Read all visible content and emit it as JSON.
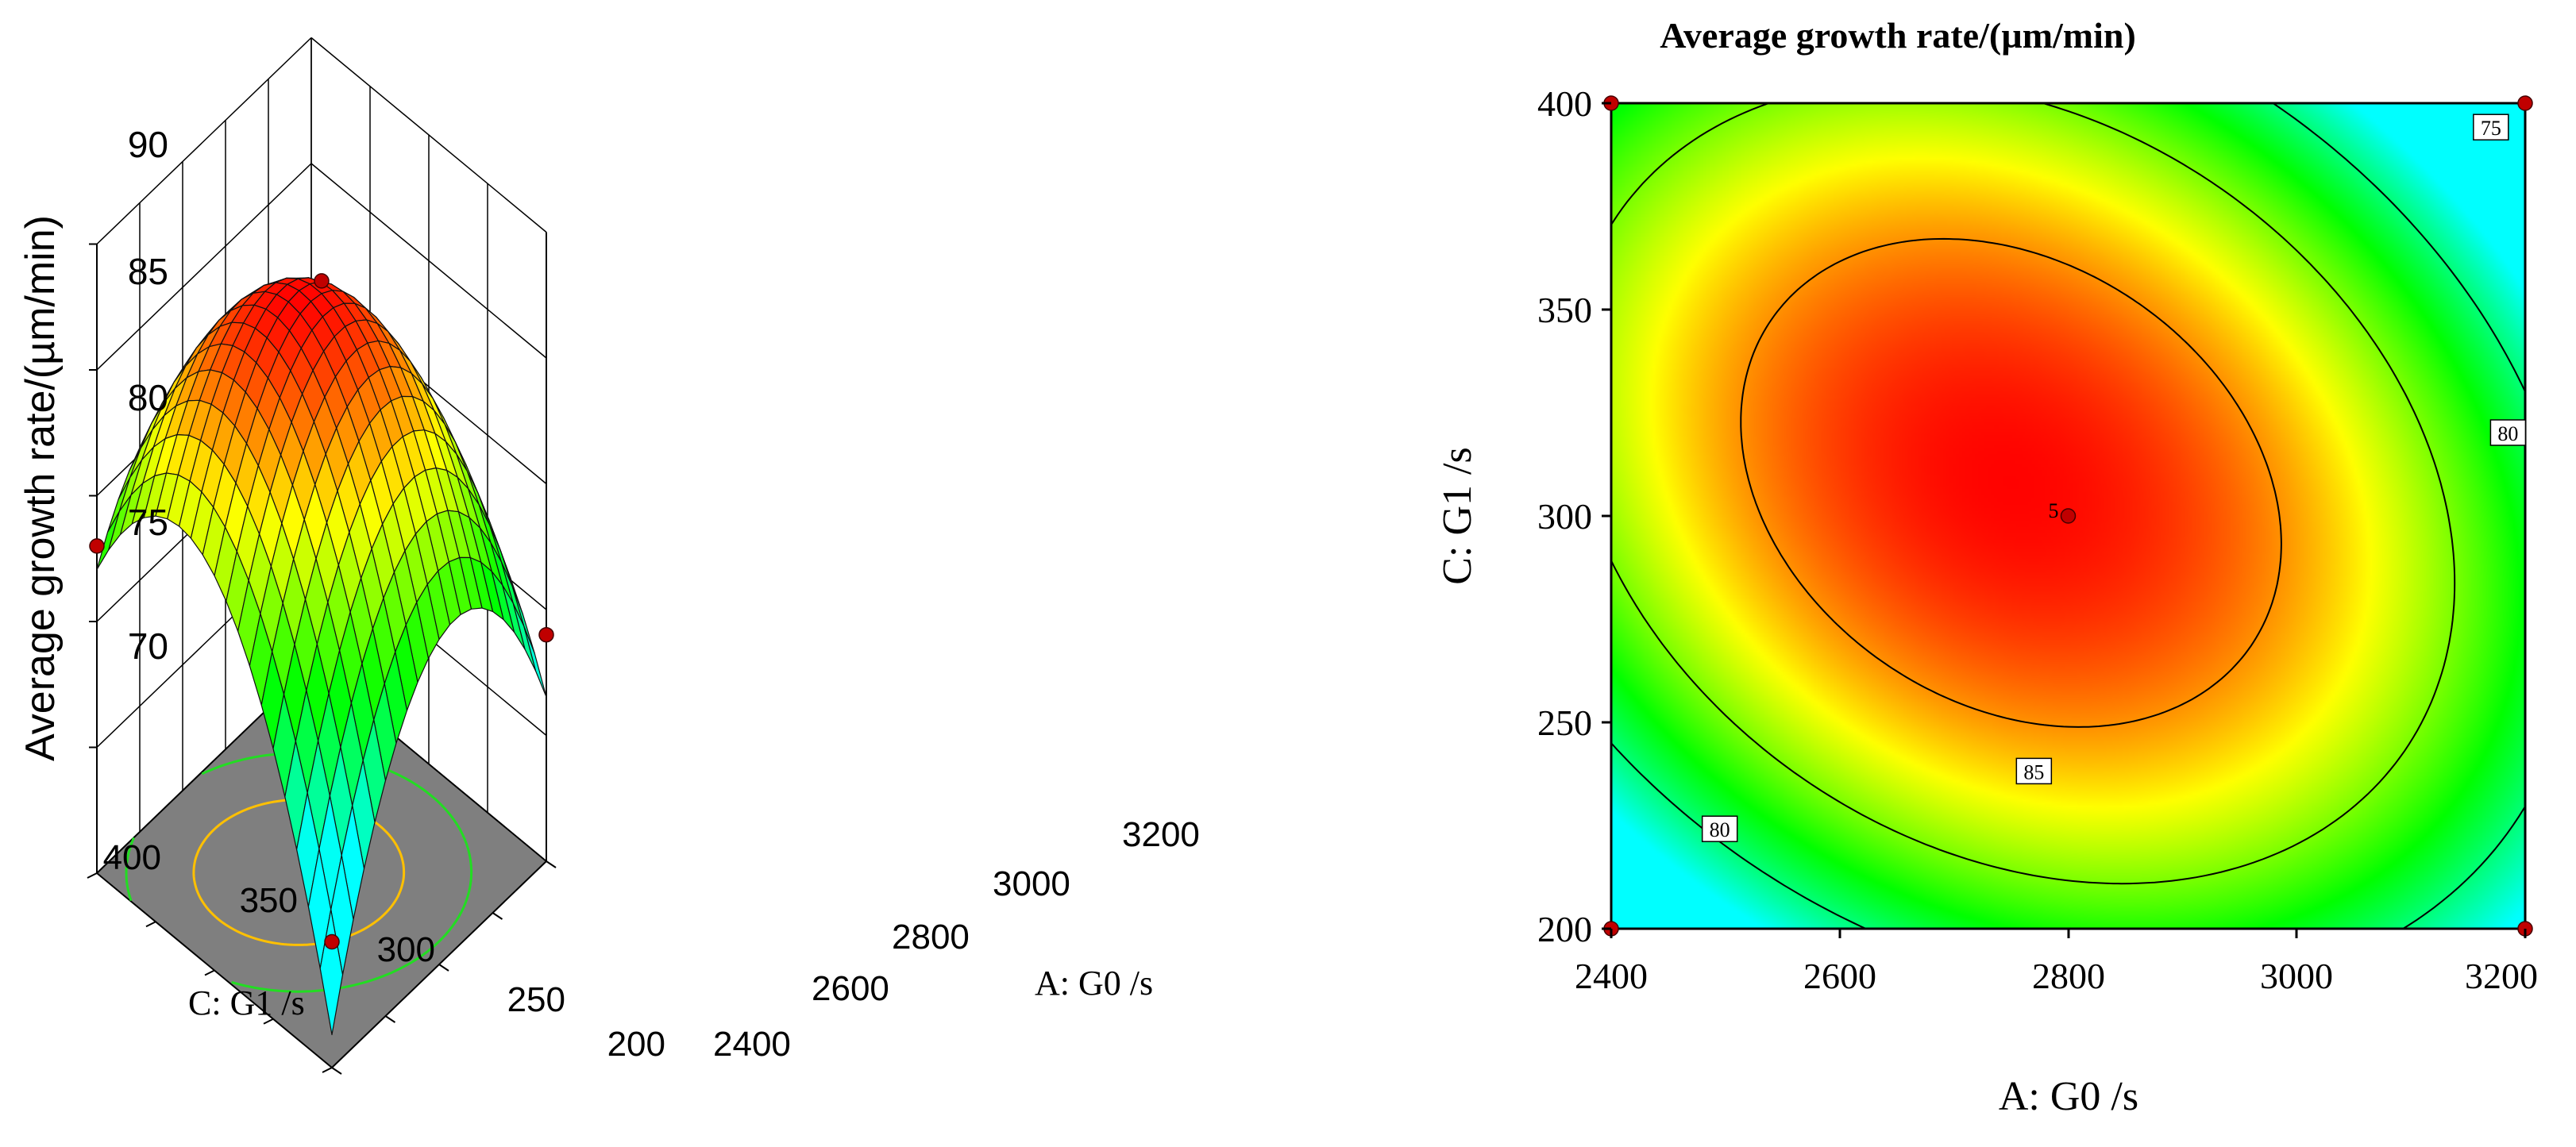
{
  "chart_data": [
    {
      "type": "surface",
      "title": "",
      "zlabel": "Average growth rate/(µm/min)",
      "xlabel": "A: G0 /s",
      "ylabel": "C: G1 /s",
      "x_ticks": [
        "2400",
        "2600",
        "2800",
        "3000",
        "3200"
      ],
      "y_ticks": [
        "200",
        "250",
        "300",
        "350",
        "400"
      ],
      "z_ticks": [
        "70",
        "75",
        "80",
        "85",
        "90"
      ],
      "xlim": [
        2400,
        3200
      ],
      "ylim": [
        200,
        400
      ],
      "zlim": [
        65,
        90
      ],
      "model": {
        "intercept": 87.95,
        "x_center": 2750,
        "x_half_range": 400,
        "y_center": 308,
        "y_half_range": 100,
        "x_quadratic": -9.0,
        "y_quadratic": -9.0,
        "xy_interaction": -4.5
      },
      "design_points": [
        {
          "x": 2800,
          "y": 300,
          "z": 88.3
        },
        {
          "x": 2400,
          "y": 400,
          "z": 78.0
        },
        {
          "x": 3200,
          "y": 200,
          "z": 74.0
        },
        {
          "x": 2400,
          "y": 200,
          "z": 70.0
        }
      ],
      "floor_contours": [
        {
          "level": 85,
          "color": "#ffc000"
        },
        {
          "level": 80,
          "color": "#22dd22"
        }
      ],
      "colors": {
        "low": "#00ffff",
        "mid_low": "#00ff00",
        "mid": "#ffff00",
        "high": "#ff0000",
        "floor": "#7f7f7f",
        "point": "#c00000",
        "point_low": "#e89090"
      }
    },
    {
      "type": "contour",
      "title": "Average growth rate/(µm/min)",
      "xlabel": "A: G0 /s",
      "ylabel": "C: G1 /s",
      "x_ticks": [
        "2400",
        "2600",
        "2800",
        "3000",
        "3200"
      ],
      "y_ticks": [
        "200",
        "250",
        "300",
        "350",
        "400"
      ],
      "xlim": [
        2400,
        3200
      ],
      "ylim": [
        200,
        400
      ],
      "contour_levels": [
        75,
        80,
        85
      ],
      "contour_labels": [
        {
          "text": "75",
          "x": 3170,
          "y": 394
        },
        {
          "text": "80",
          "x": 3185,
          "y": 320
        },
        {
          "text": "80",
          "x": 2495,
          "y": 224
        },
        {
          "text": "85",
          "x": 2770,
          "y": 238
        }
      ],
      "center_point": {
        "label": "5",
        "x": 2800,
        "y": 300
      },
      "corner_points": [
        {
          "x": 2400,
          "y": 400
        },
        {
          "x": 3200,
          "y": 400
        },
        {
          "x": 2400,
          "y": 200
        },
        {
          "x": 3200,
          "y": 200
        }
      ]
    }
  ]
}
